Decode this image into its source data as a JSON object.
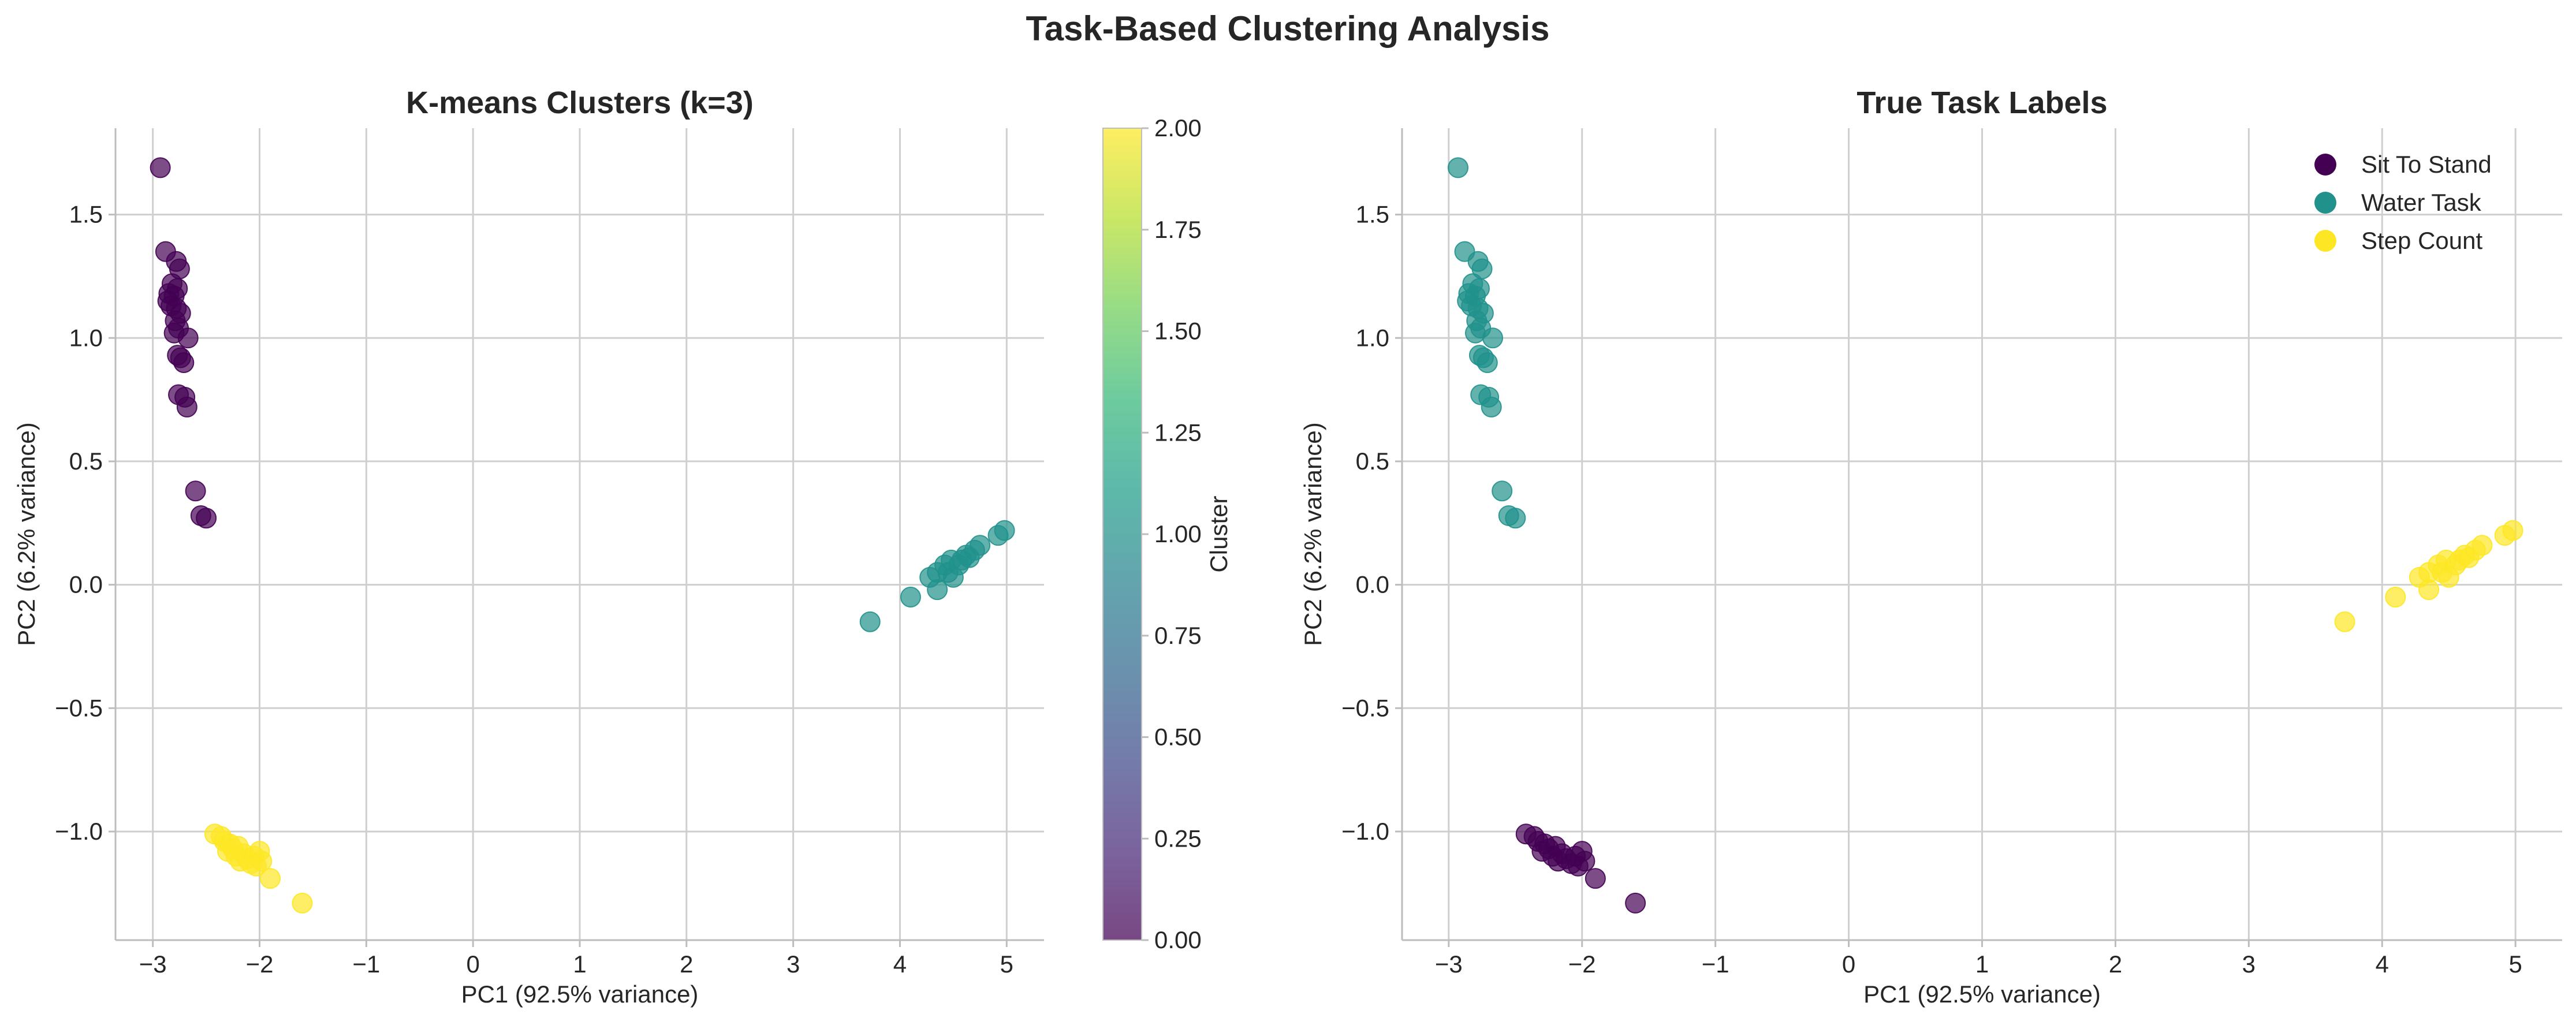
{
  "figure": {
    "title": "Task-Based Clustering Analysis"
  },
  "colors": {
    "viridis": [
      "#440154",
      "#482878",
      "#3e4989",
      "#31688e",
      "#26828e",
      "#1f9e89",
      "#35b779",
      "#6ece58",
      "#b5de2b",
      "#fde725"
    ],
    "cluster0": "#440154",
    "cluster1": "#21918c",
    "cluster2": "#fde725",
    "grid": "#cfcfcf",
    "spine": "#bdbdbd",
    "text": "#262626"
  },
  "chart_data": [
    {
      "type": "scatter",
      "title": "K-means Clusters (k=3)",
      "xlabel": "PC1 (92.5% variance)",
      "ylabel": "PC2 (6.2% variance)",
      "xlim": [
        -3.35,
        5.35
      ],
      "ylim": [
        -1.44,
        1.85
      ],
      "xticks": [
        -3,
        -2,
        -1,
        0,
        1,
        2,
        3,
        4,
        5
      ],
      "yticks": [
        -1.0,
        -0.5,
        0.0,
        0.5,
        1.0,
        1.5
      ],
      "xtick_labels": [
        "−3",
        "−2",
        "−1",
        "0",
        "1",
        "2",
        "3",
        "4",
        "5"
      ],
      "ytick_labels": [
        "−1.0",
        "−0.5",
        "0.0",
        "0.5",
        "1.0",
        "1.5"
      ],
      "grid": true,
      "marker_alpha": 0.7,
      "colorbar": {
        "label": "Cluster",
        "range": [
          0.0,
          2.0
        ],
        "ticks": [
          "0.00",
          "0.25",
          "0.50",
          "0.75",
          "1.00",
          "1.25",
          "1.50",
          "1.75",
          "2.00"
        ],
        "colormap": "viridis"
      },
      "series": [
        {
          "cluster": 0,
          "color": "#440154",
          "points": [
            [
              -2.93,
              1.69
            ],
            [
              -2.88,
              1.35
            ],
            [
              -2.78,
              1.31
            ],
            [
              -2.75,
              1.28
            ],
            [
              -2.82,
              1.22
            ],
            [
              -2.77,
              1.2
            ],
            [
              -2.85,
              1.18
            ],
            [
              -2.8,
              1.17
            ],
            [
              -2.86,
              1.15
            ],
            [
              -2.83,
              1.13
            ],
            [
              -2.78,
              1.12
            ],
            [
              -2.74,
              1.1
            ],
            [
              -2.79,
              1.07
            ],
            [
              -2.76,
              1.04
            ],
            [
              -2.8,
              1.02
            ],
            [
              -2.67,
              1.0
            ],
            [
              -2.77,
              0.93
            ],
            [
              -2.74,
              0.92
            ],
            [
              -2.71,
              0.9
            ],
            [
              -2.76,
              0.77
            ],
            [
              -2.7,
              0.76
            ],
            [
              -2.68,
              0.72
            ],
            [
              -2.6,
              0.38
            ],
            [
              -2.55,
              0.28
            ],
            [
              -2.5,
              0.27
            ]
          ]
        },
        {
          "cluster": 1,
          "color": "#21918c",
          "points": [
            [
              3.72,
              -0.15
            ],
            [
              4.1,
              -0.05
            ],
            [
              4.28,
              0.03
            ],
            [
              4.35,
              -0.02
            ],
            [
              4.35,
              0.05
            ],
            [
              4.42,
              0.08
            ],
            [
              4.45,
              0.05
            ],
            [
              4.48,
              0.1
            ],
            [
              4.5,
              0.03
            ],
            [
              4.55,
              0.08
            ],
            [
              4.58,
              0.1
            ],
            [
              4.62,
              0.12
            ],
            [
              4.65,
              0.11
            ],
            [
              4.7,
              0.14
            ],
            [
              4.75,
              0.16
            ],
            [
              4.92,
              0.2
            ],
            [
              4.98,
              0.22
            ]
          ]
        },
        {
          "cluster": 2,
          "color": "#fde725",
          "points": [
            [
              -2.42,
              -1.01
            ],
            [
              -2.36,
              -1.02
            ],
            [
              -2.33,
              -1.04
            ],
            [
              -2.28,
              -1.05
            ],
            [
              -2.3,
              -1.08
            ],
            [
              -2.25,
              -1.07
            ],
            [
              -2.2,
              -1.06
            ],
            [
              -2.22,
              -1.1
            ],
            [
              -2.15,
              -1.09
            ],
            [
              -2.18,
              -1.12
            ],
            [
              -2.12,
              -1.11
            ],
            [
              -2.08,
              -1.13
            ],
            [
              -2.05,
              -1.1
            ],
            [
              -2.03,
              -1.14
            ],
            [
              -2.0,
              -1.08
            ],
            [
              -1.98,
              -1.12
            ],
            [
              -1.9,
              -1.19
            ],
            [
              -1.6,
              -1.29
            ]
          ]
        }
      ]
    },
    {
      "type": "scatter",
      "title": "True Task Labels",
      "xlabel": "PC1 (92.5% variance)",
      "ylabel": "PC2 (6.2% variance)",
      "xlim": [
        -3.35,
        5.35
      ],
      "ylim": [
        -1.44,
        1.85
      ],
      "xticks": [
        -3,
        -2,
        -1,
        0,
        1,
        2,
        3,
        4,
        5
      ],
      "yticks": [
        -1.0,
        -0.5,
        0.0,
        0.5,
        1.0,
        1.5
      ],
      "xtick_labels": [
        "−3",
        "−2",
        "−1",
        "0",
        "1",
        "2",
        "3",
        "4",
        "5"
      ],
      "ytick_labels": [
        "−1.0",
        "−0.5",
        "0.0",
        "0.5",
        "1.0",
        "1.5"
      ],
      "grid": true,
      "marker_alpha": 0.7,
      "legend": {
        "placement": "upper-right",
        "entries": [
          "Sit To Stand",
          "Water Task",
          "Step Count"
        ]
      },
      "series": [
        {
          "name": "Sit To Stand",
          "color": "#440154",
          "points": [
            [
              -2.42,
              -1.01
            ],
            [
              -2.36,
              -1.02
            ],
            [
              -2.33,
              -1.04
            ],
            [
              -2.28,
              -1.05
            ],
            [
              -2.3,
              -1.08
            ],
            [
              -2.25,
              -1.07
            ],
            [
              -2.2,
              -1.06
            ],
            [
              -2.22,
              -1.1
            ],
            [
              -2.15,
              -1.09
            ],
            [
              -2.18,
              -1.12
            ],
            [
              -2.12,
              -1.11
            ],
            [
              -2.08,
              -1.13
            ],
            [
              -2.05,
              -1.1
            ],
            [
              -2.03,
              -1.14
            ],
            [
              -2.0,
              -1.08
            ],
            [
              -1.98,
              -1.12
            ],
            [
              -1.9,
              -1.19
            ],
            [
              -1.6,
              -1.29
            ]
          ]
        },
        {
          "name": "Water Task",
          "color": "#21918c",
          "points": [
            [
              -2.93,
              1.69
            ],
            [
              -2.88,
              1.35
            ],
            [
              -2.78,
              1.31
            ],
            [
              -2.75,
              1.28
            ],
            [
              -2.82,
              1.22
            ],
            [
              -2.77,
              1.2
            ],
            [
              -2.85,
              1.18
            ],
            [
              -2.8,
              1.17
            ],
            [
              -2.86,
              1.15
            ],
            [
              -2.83,
              1.13
            ],
            [
              -2.78,
              1.12
            ],
            [
              -2.74,
              1.1
            ],
            [
              -2.79,
              1.07
            ],
            [
              -2.76,
              1.04
            ],
            [
              -2.8,
              1.02
            ],
            [
              -2.67,
              1.0
            ],
            [
              -2.77,
              0.93
            ],
            [
              -2.74,
              0.92
            ],
            [
              -2.71,
              0.9
            ],
            [
              -2.76,
              0.77
            ],
            [
              -2.7,
              0.76
            ],
            [
              -2.68,
              0.72
            ],
            [
              -2.6,
              0.38
            ],
            [
              -2.55,
              0.28
            ],
            [
              -2.5,
              0.27
            ]
          ]
        },
        {
          "name": "Step Count",
          "color": "#fde725",
          "points": [
            [
              3.72,
              -0.15
            ],
            [
              4.1,
              -0.05
            ],
            [
              4.28,
              0.03
            ],
            [
              4.35,
              -0.02
            ],
            [
              4.35,
              0.05
            ],
            [
              4.42,
              0.08
            ],
            [
              4.45,
              0.05
            ],
            [
              4.48,
              0.1
            ],
            [
              4.5,
              0.03
            ],
            [
              4.55,
              0.08
            ],
            [
              4.58,
              0.1
            ],
            [
              4.62,
              0.12
            ],
            [
              4.65,
              0.11
            ],
            [
              4.7,
              0.14
            ],
            [
              4.75,
              0.16
            ],
            [
              4.92,
              0.2
            ],
            [
              4.98,
              0.22
            ]
          ]
        }
      ]
    }
  ]
}
